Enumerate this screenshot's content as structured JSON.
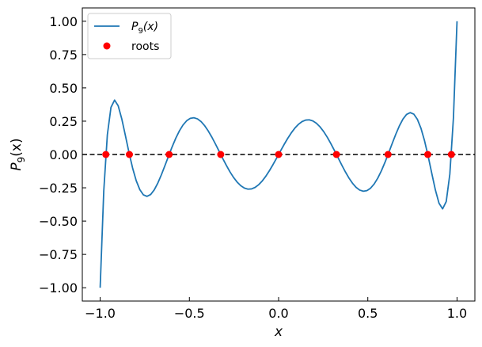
{
  "chart_data": {
    "type": "line",
    "xlabel": "x",
    "ylabel_main": "P",
    "ylabel_sub": "9",
    "ylabel_tail": "(x)",
    "xlim": [
      -1.1,
      1.1
    ],
    "ylim": [
      -1.1,
      1.1
    ],
    "x_ticks": [
      -1.0,
      -0.5,
      0.0,
      0.5,
      1.0
    ],
    "x_tick_labels": [
      "−1.0",
      "−0.5",
      "0.0",
      "0.5",
      "1.0"
    ],
    "y_ticks": [
      1.0,
      0.75,
      0.5,
      0.25,
      0.0,
      -0.25,
      -0.5,
      -0.75,
      -1.0
    ],
    "y_tick_labels": [
      "1.00",
      "0.75",
      "0.50",
      "0.25",
      "0.00",
      "−0.25",
      "−0.50",
      "−0.75",
      "−1.00"
    ],
    "grid": false,
    "legend_position": "upper-left",
    "series": [
      {
        "name_main": "P",
        "name_sub": "9",
        "name_tail": "(x)",
        "kind": "line",
        "color": "#1f77b4",
        "function": "legendre_P9",
        "x_range": [
          -1.0,
          1.0
        ],
        "samples": 100
      },
      {
        "name": "roots",
        "kind": "markers",
        "color": "#ff0000",
        "x": [
          -0.9682,
          -0.8361,
          -0.6134,
          -0.3243,
          0.0,
          0.3243,
          0.6134,
          0.8361,
          0.9682
        ],
        "y": [
          0,
          0,
          0,
          0,
          0,
          0,
          0,
          0,
          0
        ]
      }
    ],
    "reference_line": {
      "y": 0.0,
      "style": "dashed",
      "color": "#000000"
    }
  }
}
